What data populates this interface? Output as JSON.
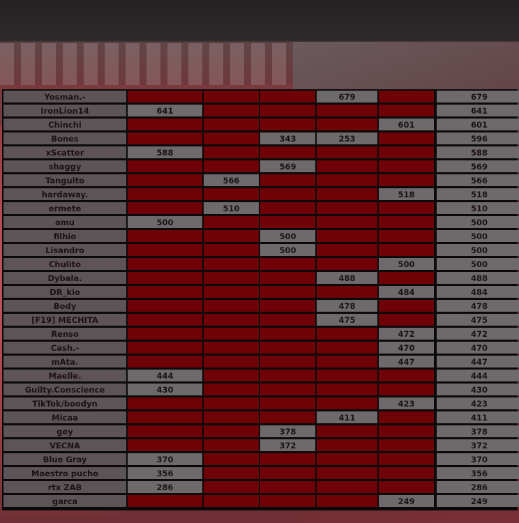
{
  "colors": {
    "empty_cell": "#8c0006",
    "filled_cell": "#6e6a6b",
    "border": "#0a0a0a"
  },
  "rows": [
    {
      "name": "Yosman.-",
      "cells": [
        "",
        "",
        "",
        "679",
        ""
      ],
      "total": "679"
    },
    {
      "name": "IronLion14",
      "cells": [
        "641",
        "",
        "",
        "",
        ""
      ],
      "total": "641"
    },
    {
      "name": "Chinchi",
      "cells": [
        "",
        "",
        "",
        "",
        "601"
      ],
      "total": "601"
    },
    {
      "name": "Bones",
      "cells": [
        "",
        "",
        "343",
        "253",
        ""
      ],
      "total": "596"
    },
    {
      "name": "xScatter",
      "cells": [
        "588",
        "",
        "",
        "",
        ""
      ],
      "total": "588"
    },
    {
      "name": "shaggy",
      "cells": [
        "",
        "",
        "569",
        "",
        ""
      ],
      "total": "569"
    },
    {
      "name": "Tanguito",
      "cells": [
        "",
        "566",
        "",
        "",
        ""
      ],
      "total": "566"
    },
    {
      "name": "hardaway.",
      "cells": [
        "",
        "",
        "",
        "",
        "518"
      ],
      "total": "518"
    },
    {
      "name": "ermete",
      "cells": [
        "",
        "510",
        "",
        "",
        ""
      ],
      "total": "510"
    },
    {
      "name": "amu",
      "cells": [
        "500",
        "",
        "",
        "",
        ""
      ],
      "total": "500"
    },
    {
      "name": "filhio",
      "cells": [
        "",
        "",
        "500",
        "",
        ""
      ],
      "total": "500"
    },
    {
      "name": "Lisandro",
      "cells": [
        "",
        "",
        "500",
        "",
        ""
      ],
      "total": "500"
    },
    {
      "name": "Chulito",
      "cells": [
        "",
        "",
        "",
        "",
        "500"
      ],
      "total": "500"
    },
    {
      "name": "Dybala.",
      "cells": [
        "",
        "",
        "",
        "488",
        ""
      ],
      "total": "488"
    },
    {
      "name": "DR_kio",
      "cells": [
        "",
        "",
        "",
        "",
        "484"
      ],
      "total": "484"
    },
    {
      "name": "Body",
      "cells": [
        "",
        "",
        "",
        "478",
        ""
      ],
      "total": "478"
    },
    {
      "name": "[F19] MECHITA",
      "cells": [
        "",
        "",
        "",
        "475",
        ""
      ],
      "total": "475"
    },
    {
      "name": "Renso",
      "cells": [
        "",
        "",
        "",
        "",
        "472"
      ],
      "total": "472"
    },
    {
      "name": "Cash.-",
      "cells": [
        "",
        "",
        "",
        "",
        "470"
      ],
      "total": "470"
    },
    {
      "name": "mAta.",
      "cells": [
        "",
        "",
        "",
        "",
        "447"
      ],
      "total": "447"
    },
    {
      "name": "Maelle.",
      "cells": [
        "444",
        "",
        "",
        "",
        ""
      ],
      "total": "444"
    },
    {
      "name": "Guilty.Conscience",
      "cells": [
        "430",
        "",
        "",
        "",
        ""
      ],
      "total": "430"
    },
    {
      "name": "TikTok/boodyn",
      "cells": [
        "",
        "",
        "",
        "",
        "423"
      ],
      "total": "423"
    },
    {
      "name": "Micaa",
      "cells": [
        "",
        "",
        "",
        "411",
        ""
      ],
      "total": "411"
    },
    {
      "name": "gey",
      "cells": [
        "",
        "",
        "378",
        "",
        ""
      ],
      "total": "378"
    },
    {
      "name": "VECNA",
      "cells": [
        "",
        "",
        "372",
        "",
        ""
      ],
      "total": "372"
    },
    {
      "name": "Blue Gray",
      "cells": [
        "370",
        "",
        "",
        "",
        ""
      ],
      "total": "370"
    },
    {
      "name": "Maestro pucho",
      "cells": [
        "356",
        "",
        "",
        "",
        ""
      ],
      "total": "356"
    },
    {
      "name": "rtx ZAB",
      "cells": [
        "286",
        "",
        "",
        "",
        ""
      ],
      "total": "286"
    },
    {
      "name": "garca",
      "cells": [
        "",
        "",
        "",
        "",
        "249"
      ],
      "total": "249"
    }
  ]
}
